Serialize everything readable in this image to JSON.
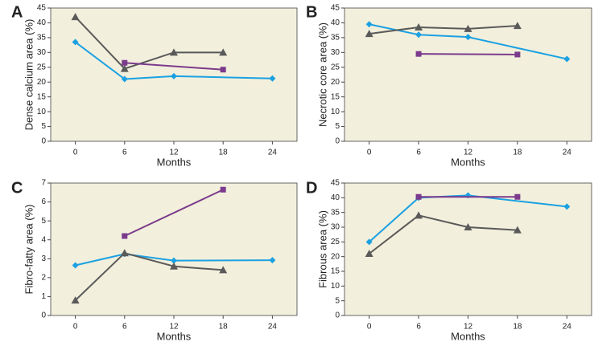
{
  "chart_data": [
    {
      "type": "line",
      "label": "A",
      "xlabel": "Months",
      "ylabel": "Dense calcium area (%)",
      "xlim": [
        -3,
        27
      ],
      "xticks": [
        0,
        6,
        12,
        18,
        24
      ],
      "ylim": [
        0,
        45
      ],
      "yticks": [
        0,
        5,
        10,
        15,
        20,
        25,
        30,
        35,
        40,
        45
      ],
      "series": [
        {
          "color": "#1ba1e2",
          "marker": "diamond",
          "x": [
            0,
            6,
            12,
            24
          ],
          "values": [
            33.5,
            21,
            22,
            21.2
          ]
        },
        {
          "color": "#5a5a5a",
          "marker": "triangle",
          "x": [
            0,
            6,
            12,
            18
          ],
          "values": [
            42,
            24.5,
            30,
            30
          ]
        },
        {
          "color": "#7b3b8c",
          "marker": "square",
          "x": [
            6,
            18
          ],
          "values": [
            26.5,
            24.2
          ]
        }
      ]
    },
    {
      "type": "line",
      "label": "B",
      "xlabel": "Months",
      "ylabel": "Necrotic core area (%)",
      "xlim": [
        -3,
        27
      ],
      "xticks": [
        0,
        6,
        12,
        18,
        24
      ],
      "ylim": [
        0,
        45
      ],
      "yticks": [
        0,
        5,
        10,
        15,
        20,
        25,
        30,
        35,
        40,
        45
      ],
      "series": [
        {
          "color": "#1ba1e2",
          "marker": "diamond",
          "x": [
            0,
            6,
            12,
            24
          ],
          "values": [
            39.5,
            36,
            35.2,
            27.8
          ]
        },
        {
          "color": "#5a5a5a",
          "marker": "triangle",
          "x": [
            0,
            6,
            12,
            18
          ],
          "values": [
            36.3,
            38.5,
            38,
            39
          ]
        },
        {
          "color": "#7b3b8c",
          "marker": "square",
          "x": [
            6,
            18
          ],
          "values": [
            29.5,
            29.3
          ]
        }
      ]
    },
    {
      "type": "line",
      "label": "C",
      "xlabel": "Months",
      "ylabel": "Fibro-fatty area (%)",
      "xlim": [
        -3,
        27
      ],
      "xticks": [
        0,
        6,
        12,
        18,
        24
      ],
      "ylim": [
        0,
        7
      ],
      "yticks": [
        0,
        1,
        2,
        3,
        4,
        5,
        6,
        7
      ],
      "series": [
        {
          "color": "#1ba1e2",
          "marker": "diamond",
          "x": [
            0,
            6,
            12,
            24
          ],
          "values": [
            2.65,
            3.25,
            2.9,
            2.92
          ]
        },
        {
          "color": "#5a5a5a",
          "marker": "triangle",
          "x": [
            0,
            6,
            12,
            18
          ],
          "values": [
            0.8,
            3.3,
            2.6,
            2.4
          ]
        },
        {
          "color": "#7b3b8c",
          "marker": "square",
          "x": [
            6,
            18
          ],
          "values": [
            4.2,
            6.65
          ]
        }
      ]
    },
    {
      "type": "line",
      "label": "D",
      "xlabel": "Months",
      "ylabel": "Fibrous area (%)",
      "xlim": [
        -3,
        27
      ],
      "xticks": [
        0,
        6,
        12,
        18,
        24
      ],
      "ylim": [
        0,
        45
      ],
      "yticks": [
        0,
        5,
        10,
        15,
        20,
        25,
        30,
        35,
        40,
        45
      ],
      "series": [
        {
          "color": "#1ba1e2",
          "marker": "diamond",
          "x": [
            0,
            6,
            12,
            24
          ],
          "values": [
            25,
            40,
            40.8,
            37
          ]
        },
        {
          "color": "#5a5a5a",
          "marker": "triangle",
          "x": [
            0,
            6,
            12,
            18
          ],
          "values": [
            21,
            34,
            30,
            29
          ]
        },
        {
          "color": "#7b3b8c",
          "marker": "square",
          "x": [
            6,
            18
          ],
          "values": [
            40.3,
            40.3
          ]
        }
      ]
    }
  ]
}
